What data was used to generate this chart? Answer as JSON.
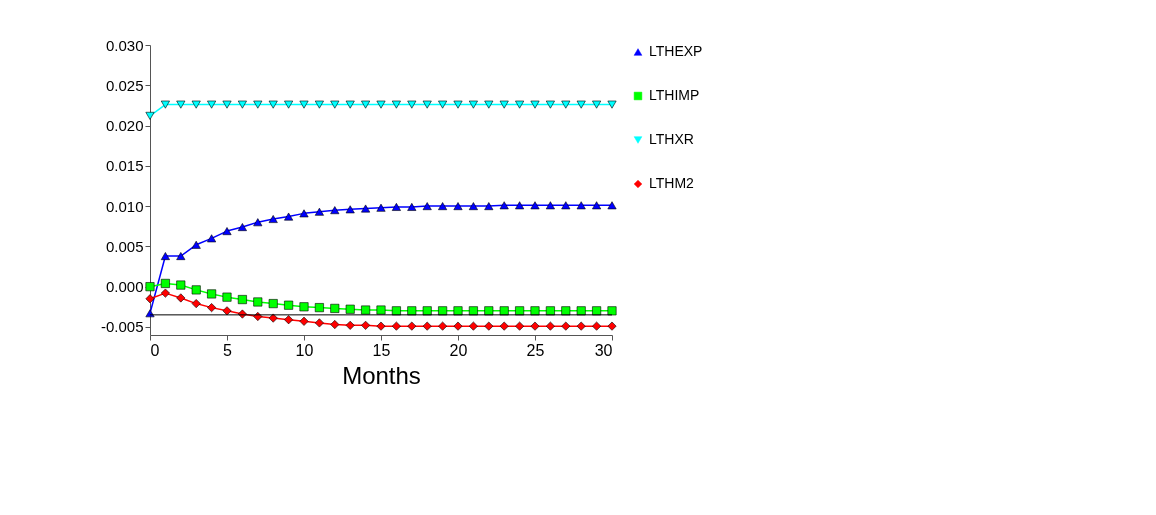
{
  "chart_data": {
    "type": "line",
    "xlabel": "Months",
    "x": [
      0,
      1,
      2,
      3,
      4,
      5,
      6,
      7,
      8,
      9,
      10,
      11,
      12,
      13,
      14,
      15,
      16,
      17,
      18,
      19,
      20,
      21,
      22,
      23,
      24,
      25,
      26,
      27,
      28,
      29,
      30
    ],
    "xlim": [
      0,
      30
    ],
    "xticks": [
      0,
      5,
      10,
      15,
      20,
      25,
      30
    ],
    "ylim": [
      -0.006,
      0.03
    ],
    "yticks": [
      {
        "value": -0.005,
        "label": "-0.005"
      },
      {
        "value": 0,
        "label": "0.000"
      },
      {
        "value": 0.005,
        "label": "0.005"
      },
      {
        "value": 0.01,
        "label": "0.010"
      },
      {
        "value": 0.015,
        "label": "0.015"
      },
      {
        "value": 0.02,
        "label": "0.020"
      },
      {
        "value": 0.025,
        "label": "0.025"
      },
      {
        "value": 0.03,
        "label": "0.030"
      }
    ],
    "grid": false,
    "legend": "right",
    "ref_lines": [
      {
        "axis": "y",
        "value": -0.0035,
        "color": "#000000"
      }
    ],
    "series": [
      {
        "name": "LTHEXP",
        "color": "#0000ff",
        "marker": "triangle",
        "values": [
          -0.0033,
          0.0038,
          0.0038,
          0.0052,
          0.006,
          0.0069,
          0.0074,
          0.008,
          0.0084,
          0.0087,
          0.0091,
          0.0093,
          0.0095,
          0.0096,
          0.0097,
          0.0098,
          0.0099,
          0.0099,
          0.01,
          0.01,
          0.01,
          0.01,
          0.01,
          0.0101,
          0.0101,
          0.0101,
          0.0101,
          0.0101,
          0.0101,
          0.0101,
          0.0101
        ]
      },
      {
        "name": "LTHIMP",
        "color": "#00ff00",
        "marker": "square",
        "values": [
          0,
          0.0004,
          0.0002,
          -0.0004,
          -0.0009,
          -0.0013,
          -0.0016,
          -0.0019,
          -0.0021,
          -0.0023,
          -0.0025,
          -0.0026,
          -0.0027,
          -0.0028,
          -0.0029,
          -0.0029,
          -0.003,
          -0.003,
          -0.003,
          -0.003,
          -0.003,
          -0.003,
          -0.003,
          -0.003,
          -0.003,
          -0.003,
          -0.003,
          -0.003,
          -0.003,
          -0.003,
          -0.003
        ]
      },
      {
        "name": "LTHXR",
        "color": "#00ffff",
        "marker": "triangle-down",
        "values": [
          0.0212,
          0.0226,
          0.0226,
          0.0226,
          0.0226,
          0.0226,
          0.0226,
          0.0226,
          0.0226,
          0.0226,
          0.0226,
          0.0226,
          0.0226,
          0.0226,
          0.0226,
          0.0226,
          0.0226,
          0.0226,
          0.0226,
          0.0226,
          0.0226,
          0.0226,
          0.0226,
          0.0226,
          0.0226,
          0.0226,
          0.0226,
          0.0226,
          0.0226,
          0.0226,
          0.0226
        ]
      },
      {
        "name": "LTHM2",
        "color": "#ff0000",
        "marker": "diamond",
        "values": [
          -0.0015,
          -0.0008,
          -0.0014,
          -0.0021,
          -0.0026,
          -0.003,
          -0.0034,
          -0.0037,
          -0.0039,
          -0.0041,
          -0.0043,
          -0.0045,
          -0.0047,
          -0.0048,
          -0.0048,
          -0.0049,
          -0.0049,
          -0.0049,
          -0.0049,
          -0.0049,
          -0.0049,
          -0.0049,
          -0.0049,
          -0.0049,
          -0.0049,
          -0.0049,
          -0.0049,
          -0.0049,
          -0.0049,
          -0.0049,
          -0.0049
        ]
      }
    ]
  }
}
